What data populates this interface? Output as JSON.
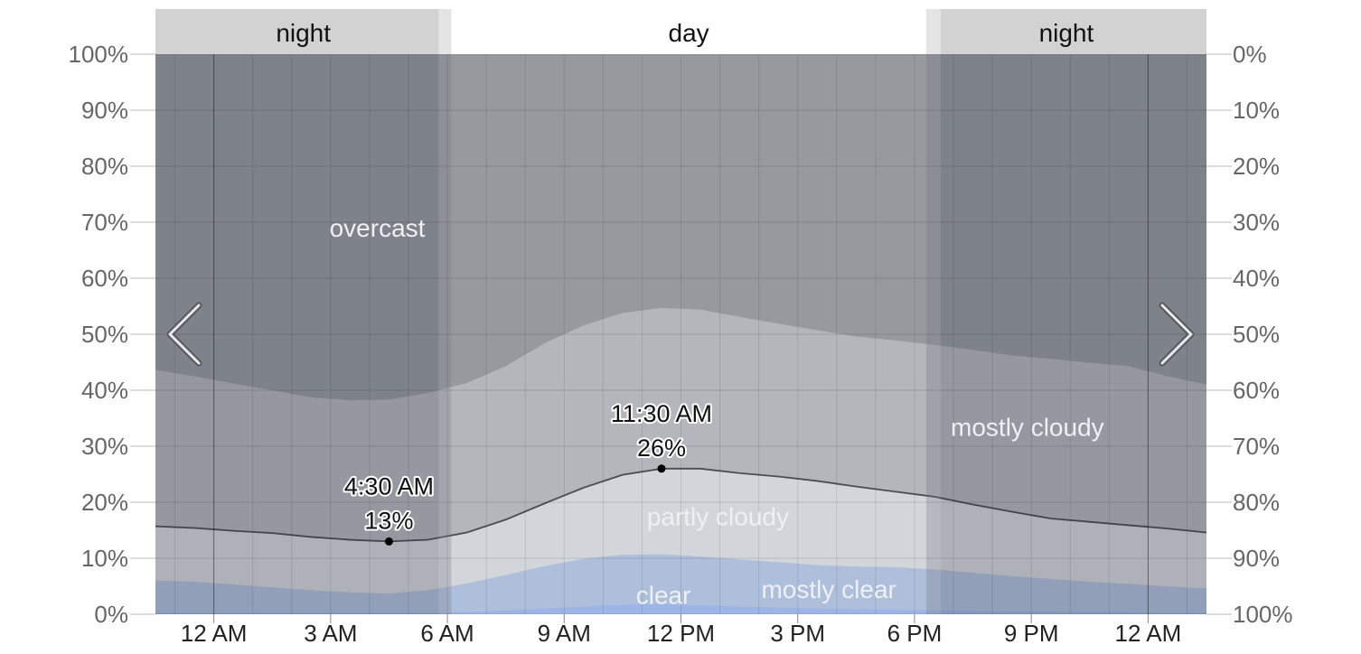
{
  "chart_data": {
    "type": "area",
    "title": "",
    "xlabel": "",
    "ylabel": "",
    "x_hours": [
      -1.5,
      -0.5,
      0.5,
      1.5,
      2.5,
      3.5,
      4.5,
      5.5,
      6.5,
      7.5,
      8.5,
      9.5,
      10.5,
      11.5,
      12.5,
      13.5,
      14.5,
      15.5,
      16.5,
      17.5,
      18.5,
      19.5,
      20.5,
      21.5,
      22.5,
      23.5,
      24.5,
      25.5
    ],
    "ylim": [
      0,
      100
    ],
    "y_ticks_left": [
      "0%",
      "10%",
      "20%",
      "30%",
      "40%",
      "50%",
      "60%",
      "70%",
      "80%",
      "90%",
      "100%"
    ],
    "y_ticks_right": [
      "100%",
      "90%",
      "80%",
      "70%",
      "60%",
      "50%",
      "40%",
      "30%",
      "20%",
      "10%",
      "0%"
    ],
    "x_ticks": [
      {
        "hour": 0,
        "label": "12 AM"
      },
      {
        "hour": 3,
        "label": "3 AM"
      },
      {
        "hour": 6,
        "label": "6 AM"
      },
      {
        "hour": 9,
        "label": "9 AM"
      },
      {
        "hour": 12,
        "label": "12 PM"
      },
      {
        "hour": 15,
        "label": "3 PM"
      },
      {
        "hour": 18,
        "label": "6 PM"
      },
      {
        "hour": 21,
        "label": "9 PM"
      },
      {
        "hour": 24,
        "label": "12 AM"
      }
    ],
    "series": [
      {
        "name": "clear",
        "values": [
          0.3,
          0.3,
          0.3,
          0.3,
          0.3,
          0.3,
          0.3,
          0.3,
          0.4,
          0.7,
          1.0,
          1.4,
          1.7,
          1.8,
          1.6,
          1.4,
          1.2,
          1.0,
          0.9,
          0.8,
          0.7,
          0.6,
          0.5,
          0.5,
          0.4,
          0.4,
          0.3,
          0.3
        ]
      },
      {
        "name": "mostly clear",
        "values": [
          6.0,
          5.8,
          5.3,
          4.8,
          4.3,
          3.9,
          3.7,
          4.3,
          5.5,
          7.0,
          8.6,
          9.9,
          10.6,
          10.7,
          10.3,
          9.8,
          9.3,
          8.8,
          8.5,
          8.4,
          8.0,
          7.4,
          6.8,
          6.3,
          5.8,
          5.4,
          5.0,
          4.6
        ]
      },
      {
        "name": "partly cloudy",
        "values": [
          15.7,
          15.4,
          14.9,
          14.5,
          13.8,
          13.3,
          13.0,
          13.3,
          14.6,
          16.9,
          19.8,
          22.6,
          24.9,
          26.0,
          26.0,
          25.2,
          24.6,
          23.8,
          22.8,
          21.9,
          21.0,
          19.6,
          18.3,
          17.1,
          16.5,
          15.9,
          15.3,
          14.6
        ]
      },
      {
        "name": "mostly cloudy",
        "values": [
          43.6,
          42.5,
          41.2,
          40.0,
          38.7,
          38.2,
          38.3,
          39.5,
          41.3,
          44.3,
          48.4,
          51.6,
          53.8,
          54.7,
          54.4,
          53.1,
          51.9,
          50.7,
          49.6,
          48.9,
          48.1,
          47.2,
          46.2,
          45.6,
          44.9,
          44.3,
          42.5,
          41.0
        ]
      },
      {
        "name": "overcast",
        "values": [
          100,
          100,
          100,
          100,
          100,
          100,
          100,
          100,
          100,
          100,
          100,
          100,
          100,
          100,
          100,
          100,
          100,
          100,
          100,
          100,
          100,
          100,
          100,
          100,
          100,
          100,
          100,
          100
        ]
      }
    ],
    "periods": [
      {
        "label": "night",
        "start": -1.5,
        "end": 6.1
      },
      {
        "label": "day",
        "start": 6.1,
        "end": 18.3
      },
      {
        "label": "night",
        "start": 18.3,
        "end": 25.5
      }
    ],
    "region_labels": [
      {
        "text": "overcast",
        "hour": 4.2,
        "y": 69
      },
      {
        "text": "mostly cloudy",
        "hour": 20.9,
        "y": 33.5
      },
      {
        "text": "partly cloudy",
        "hour": 12.95,
        "y": 17.5
      },
      {
        "text": "clear",
        "hour": 11.55,
        "y": 3.5
      },
      {
        "text": "mostly clear",
        "hour": 15.8,
        "y": 4.5
      }
    ],
    "annotations": [
      {
        "hour": 4.5,
        "value": 13,
        "time": "4:30 AM",
        "label": "13%"
      },
      {
        "hour": 11.5,
        "value": 26,
        "time": "11:30 AM",
        "label": "26%"
      }
    ],
    "colors": {
      "overcast_night": "#7b7e81",
      "overcast_day": "#969a9f",
      "mostly_cloudy_night": "#979a9f",
      "mostly_cloudy_day": "#b3b6bb",
      "partly_cloudy_night": "#aeb1b6",
      "partly_cloudy_day": "#d2d5da",
      "mostly_clear_night": "#8d9ab2",
      "mostly_clear_day": "#aebfdb",
      "clear_night": "#7c8ab5",
      "clear_day": "#9db4e6",
      "line": "#4a4d52",
      "band_night": "#d2d2d2",
      "band_day": "#ffffff",
      "twilight": "#bdbfc2"
    },
    "legend": "none",
    "grid": true
  },
  "nav": {
    "prev_icon": "chevron-left-icon",
    "next_icon": "chevron-right-icon"
  }
}
